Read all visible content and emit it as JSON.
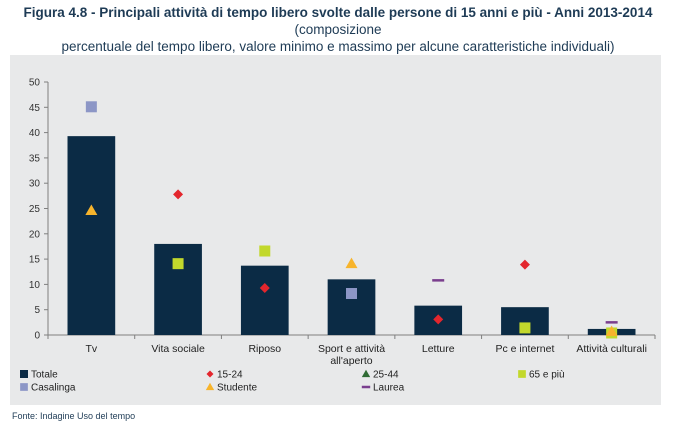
{
  "header": {
    "figure_label": "Figura 4.8 - Principali attività di tempo libero svolte dalle persone di 15 anni e più - Anni 2013-2014",
    "title_rest": "(composizione",
    "title_line2": "percentuale del tempo libero, valore minimo e massimo per alcune caratteristiche individuali)"
  },
  "footer": {
    "source": "Fonte: Indagine Uso del tempo"
  },
  "colors": {
    "Totale": "#0b2b45",
    "15-24": "#e3262d",
    "25-44": "#2f6b34",
    "65 e più": "#c2d82c",
    "Casalinga": "#8c96c6",
    "Studente": "#f7b42c",
    "Laurea": "#7a3e8e",
    "panel": "#e8e9ea",
    "axis": "#7f7f7f"
  },
  "chart_data": {
    "type": "bar",
    "categories": [
      "Tv",
      "Vita sociale",
      "Riposo",
      "Sport e attività all'aperto",
      "Letture",
      "Pc e internet",
      "Attività culturali"
    ],
    "category_lines": [
      [
        "Tv"
      ],
      [
        "Vita sociale"
      ],
      [
        "Riposo"
      ],
      [
        "Sport e attività",
        "all'aperto"
      ],
      [
        "Letture"
      ],
      [
        "Pc e internet"
      ],
      [
        "Attività culturali"
      ]
    ],
    "ylim": [
      0,
      50
    ],
    "yticks": [
      0,
      5,
      10,
      15,
      20,
      25,
      30,
      35,
      40,
      45,
      50
    ],
    "grid": false,
    "legend_position": "bottom",
    "series": [
      {
        "name": "Totale",
        "kind": "bar",
        "values": [
          39.3,
          18.0,
          13.7,
          11.0,
          5.8,
          5.5,
          1.2
        ]
      },
      {
        "name": "15-24",
        "kind": "marker",
        "shape": "diamond",
        "values": [
          null,
          27.8,
          9.3,
          null,
          3.1,
          13.9,
          null
        ]
      },
      {
        "name": "25-44",
        "kind": "marker",
        "shape": "triangle",
        "values": [
          null,
          null,
          null,
          null,
          null,
          null,
          null
        ]
      },
      {
        "name": "65 e più",
        "kind": "marker",
        "shape": "square",
        "values": [
          null,
          14.1,
          16.6,
          null,
          null,
          1.4,
          0.4
        ]
      },
      {
        "name": "Casalinga",
        "kind": "marker",
        "shape": "square",
        "values": [
          45.1,
          null,
          null,
          8.2,
          null,
          null,
          null
        ]
      },
      {
        "name": "Studente",
        "kind": "marker",
        "shape": "triangle",
        "values": [
          24.6,
          null,
          null,
          14.1,
          null,
          null,
          0.7
        ]
      },
      {
        "name": "Laurea",
        "kind": "marker",
        "shape": "dash",
        "values": [
          null,
          null,
          null,
          null,
          10.8,
          null,
          2.5
        ]
      }
    ]
  }
}
